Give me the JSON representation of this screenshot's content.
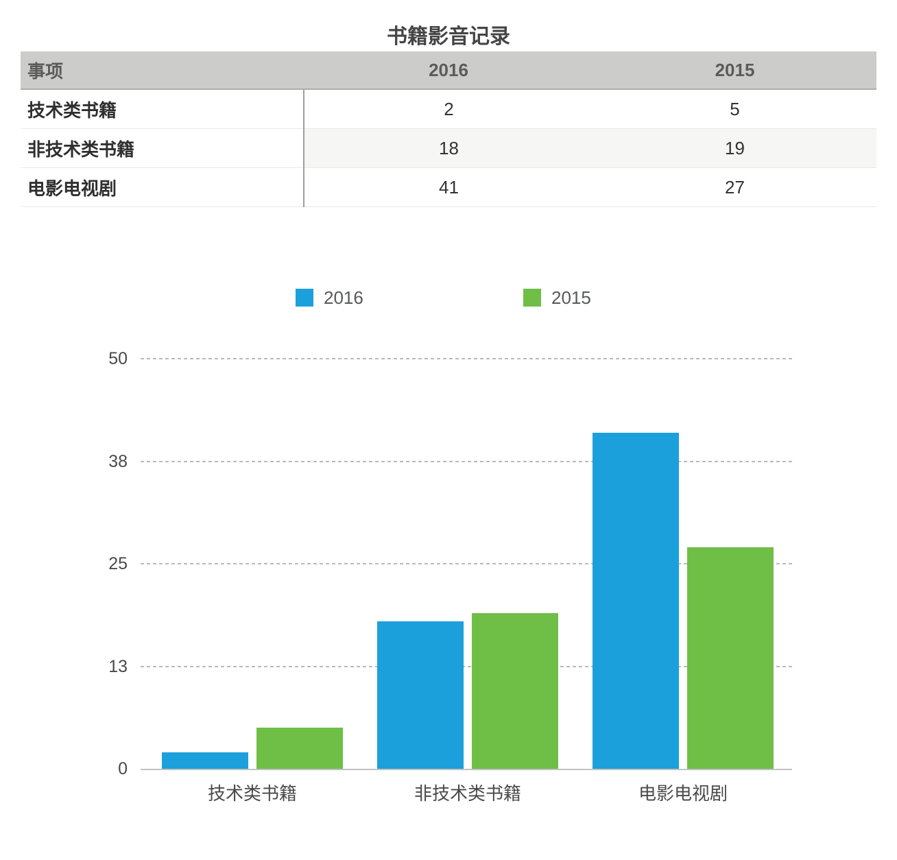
{
  "page": {
    "title": "书籍影音记录"
  },
  "table": {
    "columns": [
      "事项",
      "2016",
      "2015"
    ],
    "rows": [
      {
        "label": "技术类书籍",
        "y2016": "2",
        "y2015": "5"
      },
      {
        "label": "非技术类书籍",
        "y2016": "18",
        "y2015": "19"
      },
      {
        "label": "电影电视剧",
        "y2016": "41",
        "y2015": "27"
      }
    ]
  },
  "chart_data": {
    "type": "bar",
    "title": "",
    "categories": [
      "技术类书籍",
      "非技术类书籍",
      "电影电视剧"
    ],
    "series": [
      {
        "name": "2016",
        "color": "#1CA0DC",
        "values": [
          2,
          18,
          41
        ]
      },
      {
        "name": "2015",
        "color": "#6FBE45",
        "values": [
          5,
          19,
          27
        ]
      }
    ],
    "ylim": [
      0,
      50
    ],
    "yticks": [
      0,
      13,
      25,
      38,
      50
    ],
    "grid": "horizontal-dashed",
    "legend_position": "top"
  },
  "colors": {
    "series_2016": "#1CA0DC",
    "series_2015": "#6FBE45",
    "table_header_bg": "#CCCCCA",
    "row_stripe": "#F6F6F5",
    "axis_line": "#C2C2C2",
    "gridline": "#B9B9B9",
    "text_dark": "#333333",
    "text_gray": "#4A4A4A"
  }
}
